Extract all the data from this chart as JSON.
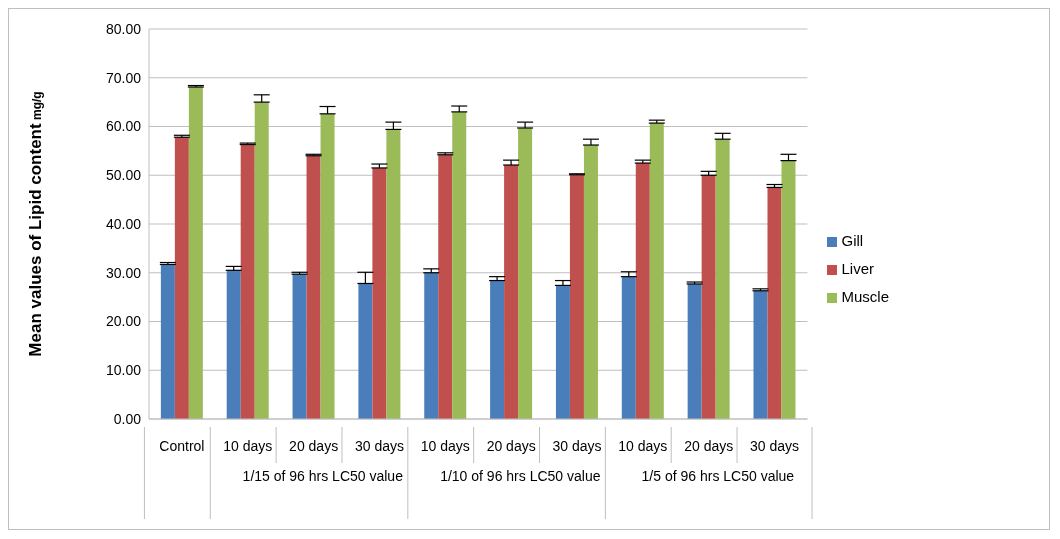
{
  "chart_data": {
    "type": "bar",
    "ylabel": "Mean values of Lipid content mg/g",
    "categories": [
      "Control",
      "10 days",
      "20 days",
      "30 days",
      "10 days",
      "20 days",
      "30 days",
      "10 days",
      "20 days",
      "30 days"
    ],
    "annotations": [
      "1/15 of 96 hrs LC50 value",
      "1/10 of 96 hrs LC50 value",
      "1/5 of 96 hrs LC50 value"
    ],
    "series": [
      {
        "name": "Gill",
        "color": "#4a7ebb",
        "values": [
          31.7,
          30.5,
          29.7,
          27.8,
          30.0,
          28.4,
          27.4,
          29.2,
          27.7,
          26.3
        ],
        "errors": [
          [
            31.7,
            32.1
          ],
          [
            30.5,
            31.3
          ],
          [
            29.7,
            30.1
          ],
          [
            27.8,
            30.1
          ],
          [
            30.0,
            30.8
          ],
          [
            28.4,
            29.2
          ],
          [
            27.4,
            28.4
          ],
          [
            29.2,
            30.2
          ],
          [
            27.7,
            28.1
          ],
          [
            26.3,
            26.7
          ]
        ]
      },
      {
        "name": "Liver",
        "color": "#c0504d",
        "values": [
          57.8,
          56.3,
          54.0,
          51.5,
          54.2,
          52.1,
          50.1,
          52.5,
          50.0,
          47.5
        ],
        "errors": [
          [
            57.8,
            58.2
          ],
          [
            56.3,
            56.6
          ],
          [
            54.0,
            54.3
          ],
          [
            51.5,
            52.3
          ],
          [
            54.2,
            54.6
          ],
          [
            52.1,
            53.1
          ],
          [
            50.1,
            50.3
          ],
          [
            52.5,
            53.1
          ],
          [
            50.0,
            50.8
          ],
          [
            47.5,
            48.1
          ]
        ]
      },
      {
        "name": "Muscle",
        "color": "#9bbb59",
        "values": [
          68.1,
          65.0,
          62.6,
          59.4,
          63.0,
          59.7,
          56.2,
          60.7,
          57.4,
          53.0
        ],
        "errors": [
          [
            68.1,
            68.4
          ],
          [
            65.0,
            66.5
          ],
          [
            62.6,
            64.1
          ],
          [
            59.4,
            60.9
          ],
          [
            63.0,
            64.2
          ],
          [
            59.7,
            60.9
          ],
          [
            56.2,
            57.4
          ],
          [
            60.7,
            61.3
          ],
          [
            57.4,
            58.6
          ],
          [
            53.0,
            54.3
          ]
        ]
      }
    ],
    "ylim": [
      0,
      80
    ],
    "yticks": [
      {
        "value": 0,
        "label": "0.00"
      },
      {
        "value": 10,
        "label": "10.00"
      },
      {
        "value": 20,
        "label": "20.00"
      },
      {
        "value": 30,
        "label": "30.00"
      },
      {
        "value": 40,
        "label": "40.00"
      },
      {
        "value": 50,
        "label": "50.00"
      },
      {
        "value": 60,
        "label": "60.00"
      },
      {
        "value": 70,
        "label": "70.00"
      },
      {
        "value": 80,
        "label": "80.00"
      }
    ],
    "grid": "y",
    "legend": "right"
  }
}
